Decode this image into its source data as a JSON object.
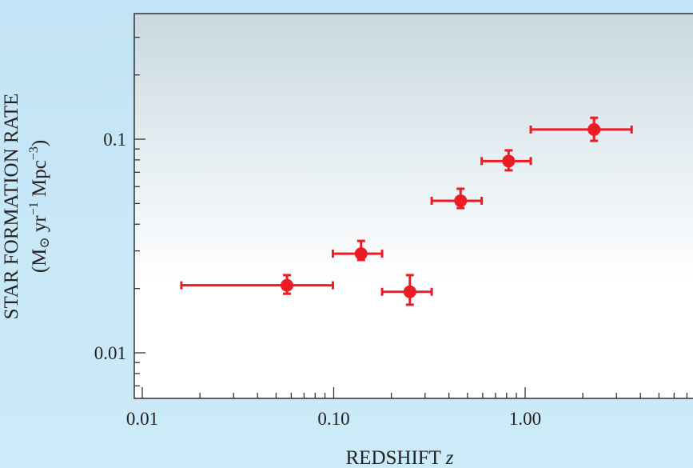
{
  "chart_data": {
    "type": "scatter",
    "title": "",
    "xlabel": "REDSHIFT",
    "xlabel_var": "z",
    "ylabel_line1": "STAR FORMATION RATE",
    "ylabel_line2_parts": [
      "(M",
      "⊙",
      " yr",
      "−1",
      " Mpc",
      "−3",
      ")"
    ],
    "xscale": "log",
    "yscale": "log",
    "xlim": [
      0.0091,
      6.5
    ],
    "ylim": [
      0.0061,
      0.39
    ],
    "xticks": [
      {
        "value": 0.01,
        "label": "0.01"
      },
      {
        "value": 0.1,
        "label": "0.10"
      },
      {
        "value": 1,
        "label": "1.00"
      }
    ],
    "yticks": [
      {
        "value": 0.01,
        "label": "0.01"
      },
      {
        "value": 0.1,
        "label": "0.1"
      }
    ],
    "grid": false,
    "marker_color": "#ed1c24",
    "points": [
      {
        "x": 0.057,
        "y": 0.0207,
        "xlo": 0.016,
        "xhi": 0.099,
        "ylo": 0.0189,
        "yhi": 0.0231
      },
      {
        "x": 0.139,
        "y": 0.0291,
        "xlo": 0.099,
        "xhi": 0.179,
        "ylo": 0.0272,
        "yhi": 0.0334
      },
      {
        "x": 0.25,
        "y": 0.0193,
        "xlo": 0.179,
        "xhi": 0.325,
        "ylo": 0.0168,
        "yhi": 0.0231
      },
      {
        "x": 0.46,
        "y": 0.0515,
        "xlo": 0.325,
        "xhi": 0.593,
        "ylo": 0.0476,
        "yhi": 0.0586
      },
      {
        "x": 0.82,
        "y": 0.079,
        "xlo": 0.593,
        "xhi": 1.07,
        "ylo": 0.0715,
        "yhi": 0.0887
      },
      {
        "x": 2.29,
        "y": 0.111,
        "xlo": 1.07,
        "xhi": 3.6,
        "ylo": 0.0983,
        "yhi": 0.126
      }
    ]
  }
}
